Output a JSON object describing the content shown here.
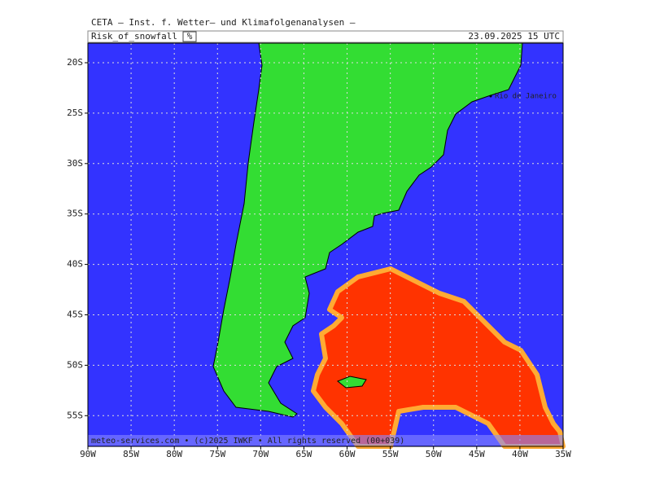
{
  "header": {
    "title": "CETA – Inst. f. Wetter– und Klimafolgenanalysen –",
    "parameter": "Risk_of_snowfall",
    "unit": "%",
    "valid_time": "23.09.2025 15 UTC"
  },
  "map": {
    "place_labels": [
      "Rio de Janeiro"
    ],
    "lat_labels": [
      "20S",
      "25S",
      "30S",
      "35S",
      "40S",
      "45S",
      "50S",
      "55S"
    ],
    "lon_labels": [
      "90W",
      "85W",
      "80W",
      "75W",
      "70W",
      "65W",
      "60W",
      "55W",
      "50W",
      "45W",
      "40W",
      "35W"
    ]
  },
  "footer": {
    "credit": "meteo-services.com • (c)2025 IWKF • All rights reserved (00+039)"
  }
}
